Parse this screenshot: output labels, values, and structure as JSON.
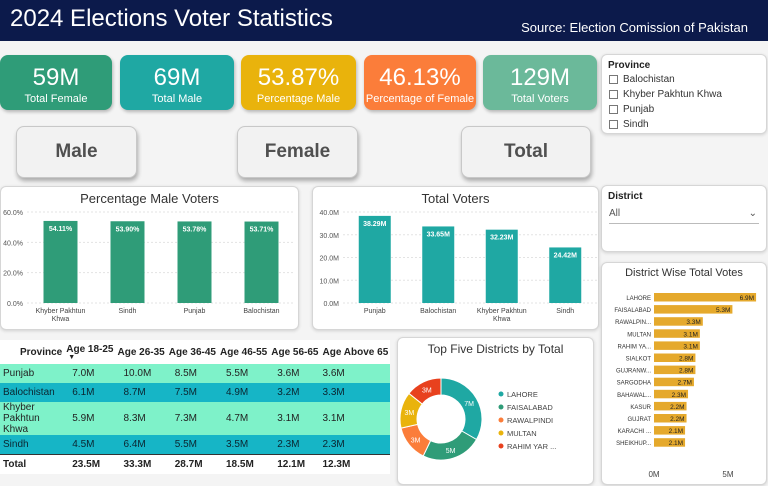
{
  "header": {
    "title": "2024 Elections Voter Statistics",
    "source": "Source: Election Comission of Pakistan"
  },
  "kpis": [
    {
      "value": "59M",
      "label": "Total Female",
      "color": "#2f9c78"
    },
    {
      "value": "69M",
      "label": "Total Male",
      "color": "#1fa8a3"
    },
    {
      "value": "53.87%",
      "label": "Percentage Male",
      "color": "#e9b30c"
    },
    {
      "value": "46.13%",
      "label": "Percentage of Female",
      "color": "#fb7d3a"
    },
    {
      "value": "129M",
      "label": "Total Voters",
      "color": "#6bb99a"
    }
  ],
  "buttons": {
    "male": "Male",
    "female": "Female",
    "total": "Total"
  },
  "province_slicer": {
    "title": "Province",
    "items": [
      "Balochistan",
      "Khyber Pakhtun Khwa",
      "Punjab",
      "Sindh"
    ]
  },
  "district_slicer": {
    "title": "District",
    "value": "All"
  },
  "charts": {
    "male_pct": {
      "title": "Percentage Male Voters",
      "chart_data": {
        "type": "bar",
        "title": "Percentage Male Voters",
        "categories": [
          "Khyber Pakhtun Khwa",
          "Sindh",
          "Punjab",
          "Balochistan"
        ],
        "values": [
          54.11,
          53.9,
          53.78,
          53.71
        ],
        "data_labels": [
          "54.11%",
          "53.90%",
          "53.78%",
          "53.71%"
        ],
        "ylim": [
          0,
          60
        ],
        "yticks": [
          "0.0%",
          "20.0%",
          "40.0%",
          "60.0%"
        ],
        "grid": true,
        "bar_color": "#2f9c78"
      }
    },
    "total_voters": {
      "title": "Total Voters",
      "chart_data": {
        "type": "bar",
        "title": "Total Voters",
        "categories": [
          "Punjab",
          "Balochistan",
          "Khyber Pakhtun Khwa",
          "Sindh"
        ],
        "values": [
          38.29,
          33.65,
          32.23,
          24.42
        ],
        "data_labels": [
          "38.29M",
          "33.65M",
          "32.23M",
          "24.42M"
        ],
        "ylim": [
          0,
          40
        ],
        "yticks": [
          "0.0M",
          "10.0M",
          "20.0M",
          "30.0M",
          "40.0M"
        ],
        "grid": true,
        "bar_color": "#1fa8a3"
      }
    },
    "district_total": {
      "title": "District Wise Total Votes",
      "chart_data": {
        "type": "bar",
        "orientation": "horizontal",
        "title": "District Wise Total Votes",
        "categories": [
          "LAHORE",
          "FAISALABAD",
          "RAWALPIN...",
          "MULTAN",
          "RAHIM YA...",
          "SIALKOT",
          "GUJRANW...",
          "SARGODHA",
          "BAHAWAL...",
          "KASUR",
          "GUJRAT",
          "KARACHI ...",
          "SHEIKHUP..."
        ],
        "values": [
          6.9,
          5.3,
          3.3,
          3.1,
          3.1,
          2.8,
          2.8,
          2.7,
          2.3,
          2.2,
          2.2,
          2.1,
          2.1
        ],
        "data_labels": [
          "6.9M",
          "5.3M",
          "3.3M",
          "3.1M",
          "3.1M",
          "2.8M",
          "2.8M",
          "2.7M",
          "2.3M",
          "2.2M",
          "2.2M",
          "2.1M",
          "2.1M"
        ],
        "xlim": [
          0,
          7.3
        ],
        "xticks": [
          "0M",
          "5M"
        ],
        "bar_color": "#e5a92c"
      }
    },
    "top_five": {
      "title": "Top Five Districts by Total",
      "chart_data": {
        "type": "pie",
        "style": "donut",
        "title": "Top Five Districts by Total",
        "categories": [
          "LAHORE",
          "FAISALABAD",
          "RAWALPINDI",
          "MULTAN",
          "RAHIM YAR ..."
        ],
        "values": [
          7,
          5,
          3,
          3,
          3
        ],
        "data_labels": [
          "7M",
          "5M",
          "3M",
          "3M",
          "3M"
        ],
        "colors": [
          "#1fa8a3",
          "#2f9c78",
          "#fb7d3a",
          "#e9b30c",
          "#e8411e"
        ],
        "legend": "right"
      }
    }
  },
  "table": {
    "columns": [
      "Province",
      "Age 18-25",
      "Age 26-35",
      "Age 36-45",
      "Age 46-55",
      "Age 56-65",
      "Age Above 65"
    ],
    "rows": [
      [
        "Punjab",
        "7.0M",
        "10.0M",
        "8.5M",
        "5.5M",
        "3.6M",
        "3.6M"
      ],
      [
        "Balochistan",
        "6.1M",
        "8.7M",
        "7.5M",
        "4.9M",
        "3.2M",
        "3.3M"
      ],
      [
        "Khyber Pakhtun Khwa",
        "5.9M",
        "8.3M",
        "7.3M",
        "4.7M",
        "3.1M",
        "3.1M"
      ],
      [
        "Sindh",
        "4.5M",
        "6.4M",
        "5.5M",
        "3.5M",
        "2.3M",
        "2.3M"
      ]
    ],
    "total": [
      "Total",
      "23.5M",
      "33.3M",
      "28.7M",
      "18.5M",
      "12.1M",
      "12.3M"
    ]
  }
}
